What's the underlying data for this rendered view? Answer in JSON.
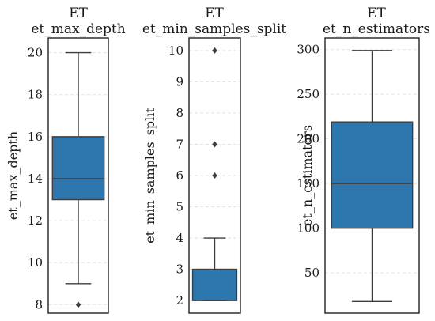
{
  "chart_data": [
    {
      "type": "box",
      "title": [
        "ET",
        "et_max_depth"
      ],
      "ylabel": "et_max_depth",
      "ylim": [
        7.6,
        20.7
      ],
      "yticks": [
        8,
        10,
        12,
        14,
        16,
        18,
        20
      ],
      "grid": true,
      "box_color": "#2e77ae",
      "box": {
        "whisker_low": 9,
        "q1": 13,
        "median": 14,
        "q3": 16,
        "whisker_high": 20
      },
      "outliers": [
        8
      ]
    },
    {
      "type": "box",
      "title": [
        "ET",
        "et_min_samples_split"
      ],
      "ylabel": "et_min_samples_split",
      "ylim": [
        1.6,
        10.4
      ],
      "yticks": [
        2,
        3,
        4,
        5,
        6,
        7,
        8,
        9,
        10
      ],
      "grid": true,
      "box_color": "#2e77ae",
      "box": {
        "whisker_low": 2,
        "q1": 2,
        "median": 3,
        "q3": 3,
        "whisker_high": 4
      },
      "outliers": [
        6,
        7,
        10
      ]
    },
    {
      "type": "box",
      "title": [
        "ET",
        "et_n_estimators"
      ],
      "ylabel": "et_n_estimators",
      "ylim": [
        5,
        313
      ],
      "yticks": [
        50,
        100,
        150,
        200,
        250,
        300
      ],
      "grid": true,
      "box_color": "#2e77ae",
      "box": {
        "whisker_low": 18,
        "q1": 100,
        "median": 150,
        "q3": 219,
        "whisker_high": 299
      },
      "outliers": []
    }
  ]
}
